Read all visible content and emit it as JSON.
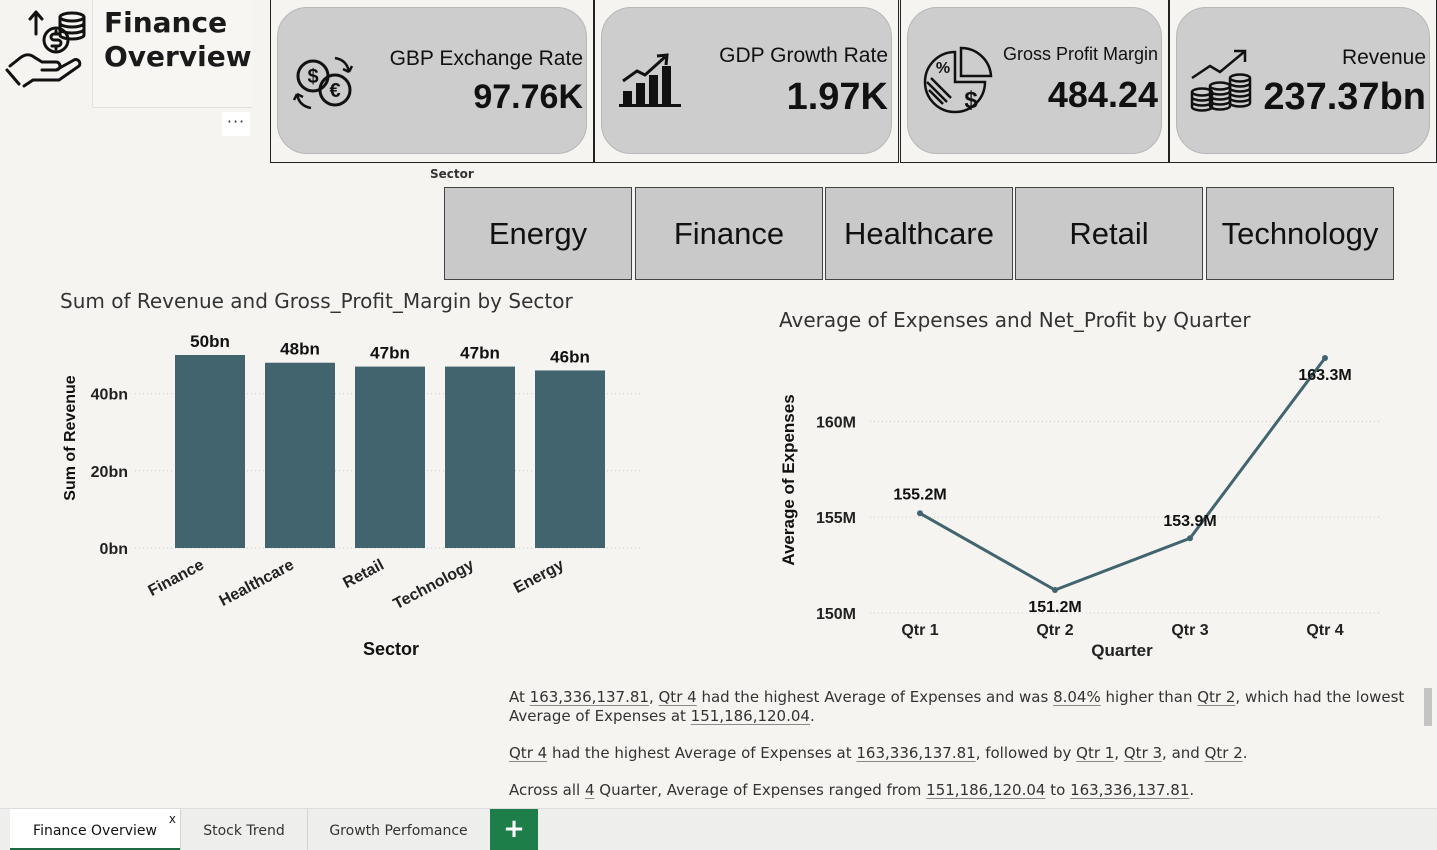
{
  "report": {
    "title_line1": "Finance",
    "title_line2": "Overview",
    "more_label": "···"
  },
  "kpis": [
    {
      "label": "GBP Exchange Rate",
      "value": "97.76K",
      "icon": "currency-exchange-icon"
    },
    {
      "label": "GDP Growth Rate",
      "value": "1.97K",
      "icon": "growth-bars-icon"
    },
    {
      "label": "Gross Profit Margin",
      "value": "484.24",
      "icon": "profit-pie-icon"
    },
    {
      "label": "Revenue",
      "value": "237.37bn",
      "icon": "revenue-coins-icon"
    }
  ],
  "slicer": {
    "title": "Sector",
    "options": [
      "Energy",
      "Finance",
      "Healthcare",
      "Retail",
      "Technology"
    ]
  },
  "bar_chart_title": "Sum of Revenue and Gross_Profit_Margin by Sector",
  "line_chart_title": "Average of Expenses and Net_Profit by Quarter",
  "chart_data": [
    {
      "type": "bar",
      "title": "Sum of Revenue and Gross_Profit_Margin by Sector",
      "xlabel": "Sector",
      "ylabel": "Sum of Revenue",
      "categories": [
        "Finance",
        "Healthcare",
        "Retail",
        "Technology",
        "Energy"
      ],
      "values": [
        50,
        48,
        47,
        47,
        46
      ],
      "value_unit": "bn",
      "data_labels": [
        "50bn",
        "48bn",
        "47bn",
        "47bn",
        "46bn"
      ],
      "ylim": [
        0,
        50
      ],
      "y_ticks": [
        0,
        20,
        40
      ],
      "y_tick_labels": [
        "0bn",
        "20bn",
        "40bn"
      ],
      "color": "#42646f",
      "grid": true
    },
    {
      "type": "line",
      "title": "Average of Expenses and Net_Profit by Quarter",
      "xlabel": "Quarter",
      "ylabel": "Average of Expenses",
      "categories": [
        "Qtr 1",
        "Qtr 2",
        "Qtr 3",
        "Qtr 4"
      ],
      "values": [
        155.2,
        151.2,
        153.9,
        163.3
      ],
      "value_unit": "M",
      "data_labels": [
        "155.2M",
        "151.2M",
        "153.9M",
        "163.3M"
      ],
      "ylim": [
        150,
        163.3
      ],
      "y_ticks": [
        150,
        155,
        160
      ],
      "y_tick_labels": [
        "150M",
        "155M",
        "160M"
      ],
      "color": "#42646f",
      "grid": true
    }
  ],
  "narrative": {
    "p1": {
      "a": "At ",
      "b": "163,336,137.81",
      "c": ", ",
      "d": "Qtr 4",
      "e": " had the highest Average of Expenses and was ",
      "f": "8.04%",
      "g": " higher than ",
      "h": "Qtr 2",
      "i": ", which had the lowest Average of Expenses at ",
      "j": "151,186,120.04",
      "k": "."
    },
    "p2": {
      "a": "Qtr 4",
      "b": " had the highest Average of Expenses at ",
      "c": "163,336,137.81",
      "d": ", followed by ",
      "e": "Qtr 1",
      "f": ", ",
      "g": "Qtr 3",
      "h": ", and ",
      "i": "Qtr 2",
      "j": "."
    },
    "p3": {
      "a": "Across all ",
      "b": "4",
      "c": " Quarter, Average of Expenses ranged from ",
      "d": "151,186,120.04",
      "e": " to ",
      "f": "163,336,137.81",
      "g": "."
    }
  },
  "tabs": [
    {
      "label": "Finance Overview",
      "active": true,
      "close": "x"
    },
    {
      "label": "Stock Trend",
      "active": false
    },
    {
      "label": "Growth Perfomance",
      "active": false
    }
  ],
  "add_tab_label": "+"
}
